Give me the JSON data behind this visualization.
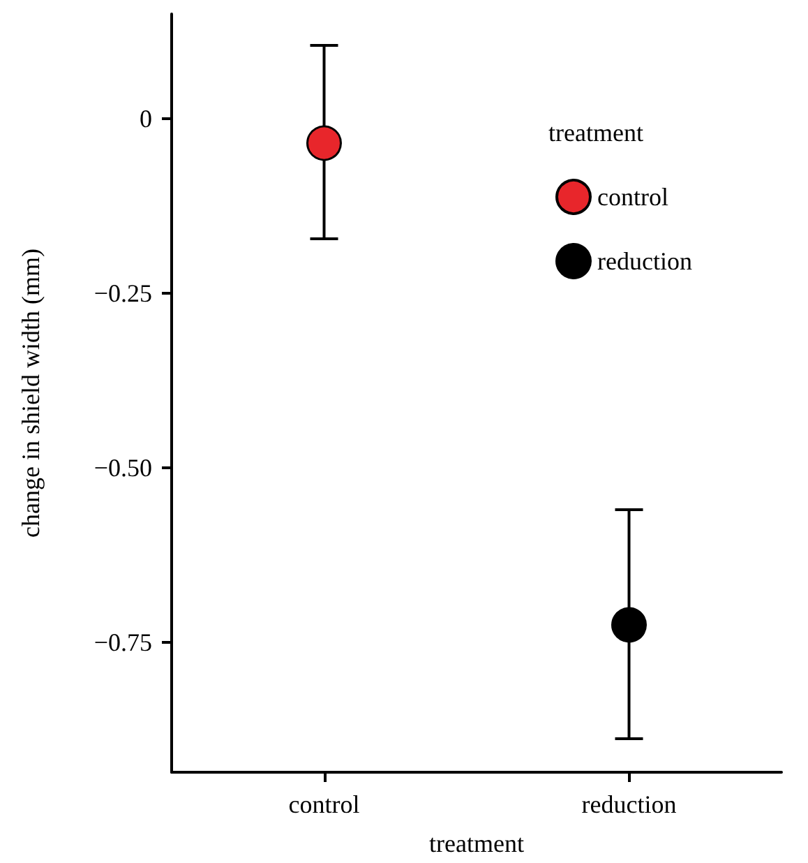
{
  "chart_data": {
    "type": "scatter",
    "xlabel": "treatment",
    "ylabel": "change in shield width (mm)",
    "legend_title": "treatment",
    "categories": [
      "control",
      "reduction"
    ],
    "series": [
      {
        "name": "control",
        "color": "#e8262b",
        "values": [
          -0.035,
          null
        ],
        "errors": [
          [
            -0.172,
            0.105
          ],
          null
        ]
      },
      {
        "name": "reduction",
        "color": "#000000",
        "values": [
          null,
          -0.725
        ],
        "errors": [
          null,
          [
            -0.888,
            -0.56
          ]
        ]
      }
    ],
    "ylim": [
      -0.936,
      0.15
    ],
    "yticks": [
      {
        "value": 0,
        "label": "0"
      },
      {
        "value": -0.25,
        "label": "−0.25"
      },
      {
        "value": -0.5,
        "label": "−0.50"
      },
      {
        "value": -0.75,
        "label": "−0.75"
      }
    ],
    "grid": false,
    "legend": "top right",
    "marker": "circle"
  }
}
